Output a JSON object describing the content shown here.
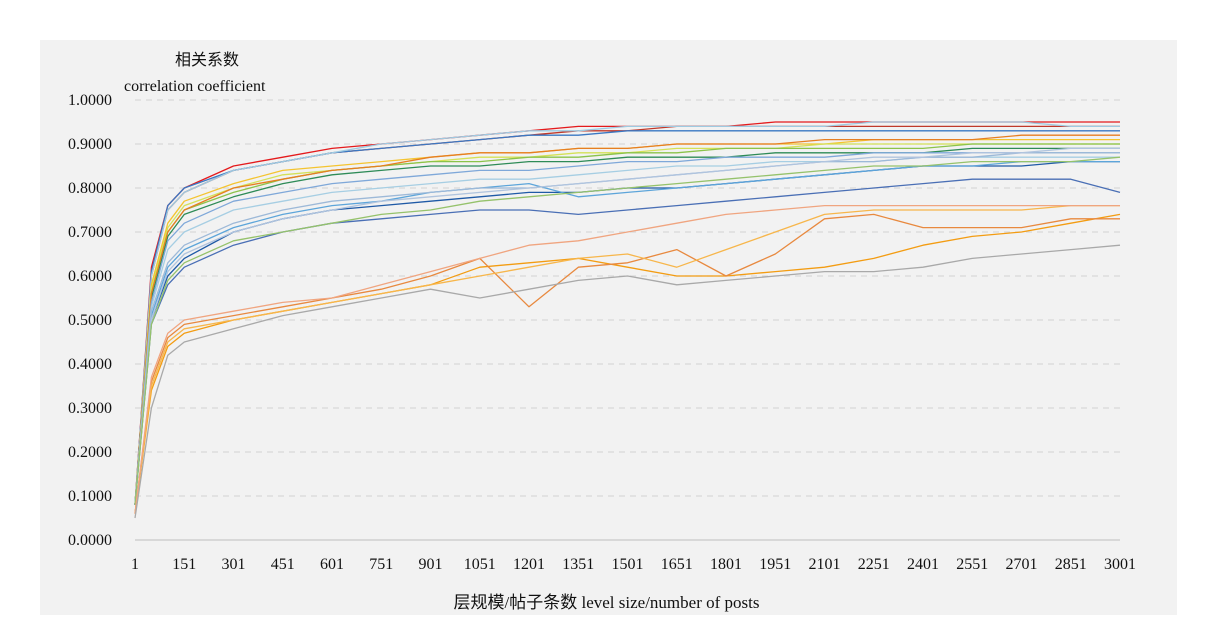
{
  "chart_data": {
    "type": "line",
    "title": "",
    "ylabel_cn": "相关系数",
    "ylabel_en": "correlation coefficient",
    "xlabel": "层规模/帖子条数 level size/number of posts",
    "ylim": [
      0,
      1
    ],
    "y_ticks": [
      "0.0000",
      "0.1000",
      "0.2000",
      "0.3000",
      "0.4000",
      "0.5000",
      "0.6000",
      "0.7000",
      "0.8000",
      "0.9000",
      "1.0000"
    ],
    "x_ticks": [
      "1",
      "151",
      "301",
      "451",
      "601",
      "751",
      "901",
      "1051",
      "1201",
      "1351",
      "1501",
      "1651",
      "1801",
      "1951",
      "2101",
      "2251",
      "2401",
      "2551",
      "2701",
      "2851",
      "3001"
    ],
    "xlim": [
      1,
      3001
    ],
    "grid": "horizontal dashed",
    "legend": "none",
    "x": [
      1,
      51,
      101,
      151,
      301,
      451,
      601,
      751,
      901,
      1051,
      1201,
      1351,
      1501,
      1651,
      1801,
      1951,
      2101,
      2251,
      2401,
      2551,
      2701,
      2851,
      3001
    ],
    "series": [
      {
        "color": "#e41a1c",
        "values": [
          0.08,
          0.62,
          0.76,
          0.8,
          0.85,
          0.87,
          0.89,
          0.9,
          0.91,
          0.92,
          0.93,
          0.94,
          0.94,
          0.94,
          0.94,
          0.95,
          0.95,
          0.95,
          0.95,
          0.95,
          0.95,
          0.95,
          0.95
        ]
      },
      {
        "color": "#c0392b",
        "values": [
          0.08,
          0.6,
          0.75,
          0.79,
          0.84,
          0.86,
          0.88,
          0.89,
          0.9,
          0.91,
          0.92,
          0.93,
          0.93,
          0.94,
          0.94,
          0.94,
          0.94,
          0.94,
          0.94,
          0.94,
          0.94,
          0.94,
          0.94
        ]
      },
      {
        "color": "#3a78c3",
        "values": [
          0.08,
          0.61,
          0.76,
          0.8,
          0.84,
          0.86,
          0.88,
          0.89,
          0.9,
          0.91,
          0.92,
          0.92,
          0.93,
          0.93,
          0.93,
          0.93,
          0.93,
          0.93,
          0.93,
          0.93,
          0.93,
          0.93,
          0.93
        ]
      },
      {
        "color": "#9ecae1",
        "values": [
          0.08,
          0.6,
          0.75,
          0.79,
          0.84,
          0.86,
          0.88,
          0.9,
          0.91,
          0.92,
          0.93,
          0.93,
          0.94,
          0.94,
          0.94,
          0.94,
          0.94,
          0.95,
          0.95,
          0.95,
          0.95,
          0.94,
          0.94
        ]
      },
      {
        "color": "#f4c430",
        "values": [
          0.08,
          0.58,
          0.72,
          0.77,
          0.81,
          0.84,
          0.85,
          0.86,
          0.87,
          0.88,
          0.88,
          0.89,
          0.89,
          0.9,
          0.9,
          0.9,
          0.9,
          0.91,
          0.91,
          0.91,
          0.91,
          0.91,
          0.91
        ]
      },
      {
        "color": "#d4e157",
        "values": [
          0.08,
          0.57,
          0.71,
          0.76,
          0.8,
          0.83,
          0.84,
          0.85,
          0.86,
          0.87,
          0.87,
          0.88,
          0.88,
          0.89,
          0.89,
          0.89,
          0.9,
          0.9,
          0.9,
          0.9,
          0.9,
          0.9,
          0.9
        ]
      },
      {
        "color": "#8bc34a",
        "values": [
          0.08,
          0.56,
          0.7,
          0.75,
          0.79,
          0.82,
          0.84,
          0.85,
          0.86,
          0.86,
          0.87,
          0.87,
          0.88,
          0.88,
          0.89,
          0.89,
          0.89,
          0.89,
          0.89,
          0.9,
          0.9,
          0.9,
          0.9
        ]
      },
      {
        "color": "#2e8b57",
        "values": [
          0.08,
          0.55,
          0.69,
          0.74,
          0.78,
          0.81,
          0.83,
          0.84,
          0.85,
          0.85,
          0.86,
          0.86,
          0.87,
          0.87,
          0.87,
          0.88,
          0.88,
          0.88,
          0.88,
          0.89,
          0.89,
          0.89,
          0.89
        ]
      },
      {
        "color": "#e67e22",
        "values": [
          0.08,
          0.56,
          0.7,
          0.75,
          0.8,
          0.82,
          0.84,
          0.85,
          0.87,
          0.88,
          0.88,
          0.89,
          0.89,
          0.9,
          0.9,
          0.9,
          0.91,
          0.91,
          0.91,
          0.91,
          0.92,
          0.92,
          0.92
        ]
      },
      {
        "color": "#7fa8d9",
        "values": [
          0.08,
          0.54,
          0.68,
          0.72,
          0.77,
          0.79,
          0.81,
          0.82,
          0.83,
          0.84,
          0.84,
          0.85,
          0.86,
          0.86,
          0.87,
          0.87,
          0.87,
          0.88,
          0.88,
          0.88,
          0.88,
          0.88,
          0.88
        ]
      },
      {
        "color": "#a6cee3",
        "values": [
          0.08,
          0.53,
          0.66,
          0.7,
          0.75,
          0.77,
          0.79,
          0.8,
          0.81,
          0.82,
          0.82,
          0.83,
          0.84,
          0.85,
          0.85,
          0.86,
          0.86,
          0.86,
          0.87,
          0.87,
          0.87,
          0.87,
          0.87
        ]
      },
      {
        "color": "#1f5aa6",
        "values": [
          0.08,
          0.5,
          0.6,
          0.64,
          0.7,
          0.73,
          0.75,
          0.76,
          0.77,
          0.78,
          0.79,
          0.79,
          0.8,
          0.8,
          0.81,
          0.82,
          0.83,
          0.84,
          0.85,
          0.85,
          0.85,
          0.86,
          0.86
        ]
      },
      {
        "color": "#4a6fb5",
        "values": [
          0.08,
          0.49,
          0.58,
          0.62,
          0.67,
          0.7,
          0.72,
          0.73,
          0.74,
          0.75,
          0.75,
          0.74,
          0.75,
          0.76,
          0.77,
          0.78,
          0.79,
          0.8,
          0.81,
          0.82,
          0.82,
          0.82,
          0.79
        ]
      },
      {
        "color": "#5da5da",
        "values": [
          0.08,
          0.51,
          0.62,
          0.66,
          0.71,
          0.74,
          0.76,
          0.77,
          0.79,
          0.8,
          0.81,
          0.78,
          0.79,
          0.8,
          0.81,
          0.82,
          0.83,
          0.84,
          0.85,
          0.85,
          0.86,
          0.86,
          0.86
        ]
      },
      {
        "color": "#9db9d8",
        "values": [
          0.08,
          0.52,
          0.63,
          0.67,
          0.72,
          0.75,
          0.77,
          0.78,
          0.79,
          0.8,
          0.8,
          0.81,
          0.82,
          0.83,
          0.84,
          0.85,
          0.86,
          0.86,
          0.87,
          0.87,
          0.88,
          0.88,
          0.88
        ]
      },
      {
        "color": "#b0c4de",
        "values": [
          0.08,
          0.5,
          0.61,
          0.65,
          0.7,
          0.73,
          0.75,
          0.77,
          0.78,
          0.79,
          0.8,
          0.81,
          0.82,
          0.83,
          0.84,
          0.85,
          0.86,
          0.87,
          0.87,
          0.88,
          0.88,
          0.89,
          0.89
        ]
      },
      {
        "color": "#95c26b",
        "values": [
          0.08,
          0.49,
          0.59,
          0.63,
          0.68,
          0.7,
          0.72,
          0.74,
          0.75,
          0.77,
          0.78,
          0.79,
          0.8,
          0.81,
          0.82,
          0.83,
          0.84,
          0.85,
          0.85,
          0.86,
          0.86,
          0.86,
          0.87
        ]
      },
      {
        "color": "#f39c12",
        "values": [
          0.06,
          0.34,
          0.44,
          0.47,
          0.5,
          0.52,
          0.54,
          0.56,
          0.58,
          0.62,
          0.63,
          0.64,
          0.62,
          0.6,
          0.6,
          0.61,
          0.62,
          0.64,
          0.67,
          0.69,
          0.7,
          0.72,
          0.74
        ]
      },
      {
        "color": "#e8893f",
        "values": [
          0.06,
          0.36,
          0.46,
          0.49,
          0.51,
          0.53,
          0.55,
          0.57,
          0.6,
          0.64,
          0.53,
          0.62,
          0.63,
          0.66,
          0.6,
          0.65,
          0.73,
          0.74,
          0.71,
          0.71,
          0.71,
          0.73,
          0.73
        ]
      },
      {
        "color": "#f7b64b",
        "values": [
          0.06,
          0.35,
          0.45,
          0.48,
          0.5,
          0.52,
          0.54,
          0.56,
          0.58,
          0.6,
          0.62,
          0.64,
          0.65,
          0.62,
          0.66,
          0.7,
          0.74,
          0.75,
          0.75,
          0.75,
          0.75,
          0.76,
          0.76
        ]
      },
      {
        "color": "#f0a580",
        "values": [
          0.06,
          0.37,
          0.47,
          0.5,
          0.52,
          0.54,
          0.55,
          0.58,
          0.61,
          0.64,
          0.67,
          0.68,
          0.7,
          0.72,
          0.74,
          0.75,
          0.76,
          0.76,
          0.76,
          0.76,
          0.76,
          0.76,
          0.76
        ]
      },
      {
        "color": "#a9a9a9",
        "values": [
          0.05,
          0.3,
          0.42,
          0.45,
          0.48,
          0.51,
          0.53,
          0.55,
          0.57,
          0.55,
          0.57,
          0.59,
          0.6,
          0.58,
          0.59,
          0.6,
          0.61,
          0.61,
          0.62,
          0.64,
          0.65,
          0.66,
          0.67
        ]
      }
    ]
  }
}
